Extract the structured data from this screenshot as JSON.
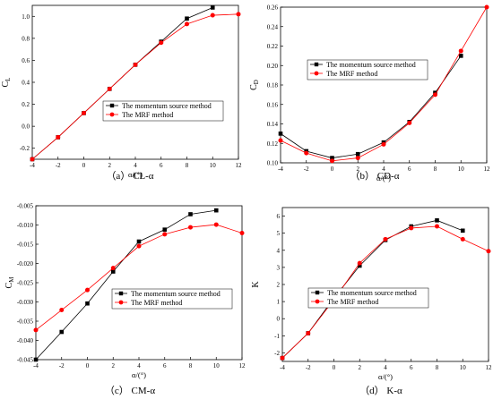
{
  "colors": {
    "momentum": "#000000",
    "mrf": "#ff0000",
    "axis": "#000000"
  },
  "chart_data": [
    {
      "id": "a",
      "type": "line",
      "caption": "（a） CL-α",
      "xlabel": "α/(°)",
      "ylabel": "CL",
      "xlim": [
        -4,
        12
      ],
      "ylim": [
        -0.3,
        1.1
      ],
      "xticks": [
        -4,
        -2,
        0,
        2,
        4,
        6,
        8,
        10,
        12
      ],
      "yticks": [
        -0.2,
        0.0,
        0.2,
        0.4,
        0.6,
        0.8,
        1.0
      ],
      "ytick_labels": [
        "-0.2",
        "0.0",
        "0.2",
        "0.4",
        "0.6",
        "0.8",
        "1.0"
      ],
      "legend_position": "lower-right",
      "series": [
        {
          "name": "The momentum source method",
          "marker": "square",
          "color": "#000000",
          "x": [
            -4,
            -2,
            0,
            2,
            4,
            6,
            8,
            10
          ],
          "y": [
            -0.3,
            -0.1,
            0.12,
            0.34,
            0.56,
            0.77,
            0.98,
            1.08
          ]
        },
        {
          "name": "The MRF method",
          "marker": "circle",
          "color": "#ff0000",
          "x": [
            -4,
            -2,
            0,
            2,
            4,
            6,
            8,
            10,
            12
          ],
          "y": [
            -0.3,
            -0.1,
            0.12,
            0.34,
            0.56,
            0.76,
            0.93,
            1.01,
            1.02
          ]
        }
      ]
    },
    {
      "id": "b",
      "type": "line",
      "caption": "（b） CD-α",
      "xlabel": "α/(°)",
      "ylabel": "CD",
      "xlim": [
        -4,
        12
      ],
      "ylim": [
        0.1,
        0.26
      ],
      "xticks": [
        -4,
        -2,
        0,
        2,
        4,
        6,
        8,
        10,
        12
      ],
      "yticks": [
        0.1,
        0.12,
        0.14,
        0.16,
        0.18,
        0.2,
        0.22,
        0.24,
        0.26
      ],
      "ytick_labels": [
        "0.10",
        "0.12",
        "0.14",
        "0.16",
        "0.18",
        "0.20",
        "0.22",
        "0.24",
        "0.26"
      ],
      "legend_position": "upper-left",
      "series": [
        {
          "name": "The momentum source method",
          "marker": "square",
          "color": "#000000",
          "x": [
            -4,
            -2,
            0,
            2,
            4,
            6,
            8,
            10
          ],
          "y": [
            0.13,
            0.112,
            0.105,
            0.109,
            0.121,
            0.142,
            0.172,
            0.21
          ]
        },
        {
          "name": "The MRF method",
          "marker": "circle",
          "color": "#ff0000",
          "x": [
            -4,
            -2,
            0,
            2,
            4,
            6,
            8,
            10,
            12
          ],
          "y": [
            0.123,
            0.11,
            0.102,
            0.105,
            0.119,
            0.141,
            0.17,
            0.215,
            0.26
          ]
        }
      ]
    },
    {
      "id": "c",
      "type": "line",
      "caption": "（c） CM-α",
      "xlabel": "α/(°)",
      "ylabel": "CM",
      "xlim": [
        -4,
        12
      ],
      "ylim": [
        -0.045,
        -0.005
      ],
      "xticks": [
        -4,
        -2,
        0,
        2,
        4,
        6,
        8,
        10,
        12
      ],
      "yticks": [
        -0.045,
        -0.04,
        -0.035,
        -0.03,
        -0.025,
        -0.02,
        -0.015,
        -0.01,
        -0.005
      ],
      "ytick_labels": [
        "-0.045",
        "-0.040",
        "-0.035",
        "-0.030",
        "-0.025",
        "-0.020",
        "-0.015",
        "-0.010",
        "-0.005"
      ],
      "legend_position": "lower-right",
      "series": [
        {
          "name": "The momentum source method",
          "marker": "square",
          "color": "#000000",
          "x": [
            -4,
            -2,
            0,
            2,
            4,
            6,
            8,
            10
          ],
          "y": [
            -0.045,
            -0.0378,
            -0.0304,
            -0.0221,
            -0.0143,
            -0.0112,
            -0.0072,
            -0.0062
          ]
        },
        {
          "name": "The MRF method",
          "marker": "circle",
          "color": "#ff0000",
          "x": [
            -4,
            -2,
            0,
            2,
            4,
            6,
            8,
            10,
            12
          ],
          "y": [
            -0.0373,
            -0.0321,
            -0.0269,
            -0.0212,
            -0.0155,
            -0.0124,
            -0.0106,
            -0.0099,
            -0.0121
          ]
        }
      ]
    },
    {
      "id": "d",
      "type": "line",
      "caption": "（d） K-α",
      "xlabel": "α/(°)",
      "ylabel": "K",
      "xlim": [
        -4,
        12
      ],
      "ylim": [
        -2.5,
        6.5
      ],
      "xticks": [
        -4,
        -2,
        0,
        2,
        4,
        6,
        8,
        10,
        12
      ],
      "yticks": [
        -2,
        -1,
        0,
        1,
        2,
        3,
        4,
        5,
        6
      ],
      "ytick_labels": [
        "-2",
        "-1",
        "0",
        "1",
        "2",
        "3",
        "4",
        "5",
        "6"
      ],
      "legend_position": "lower-right",
      "series": [
        {
          "name": "The momentum source method",
          "marker": "square",
          "color": "#000000",
          "x": [
            -4,
            -2,
            0,
            2,
            4,
            6,
            8,
            10
          ],
          "y": [
            -2.3,
            -0.85,
            1.2,
            3.1,
            4.6,
            5.4,
            5.75,
            5.15
          ]
        },
        {
          "name": "The MRF method",
          "marker": "circle",
          "color": "#ff0000",
          "x": [
            -4,
            -2,
            0,
            2,
            4,
            6,
            8,
            10,
            12
          ],
          "y": [
            -2.3,
            -0.85,
            1.1,
            3.25,
            4.65,
            5.3,
            5.4,
            4.65,
            3.95
          ]
        }
      ]
    }
  ]
}
